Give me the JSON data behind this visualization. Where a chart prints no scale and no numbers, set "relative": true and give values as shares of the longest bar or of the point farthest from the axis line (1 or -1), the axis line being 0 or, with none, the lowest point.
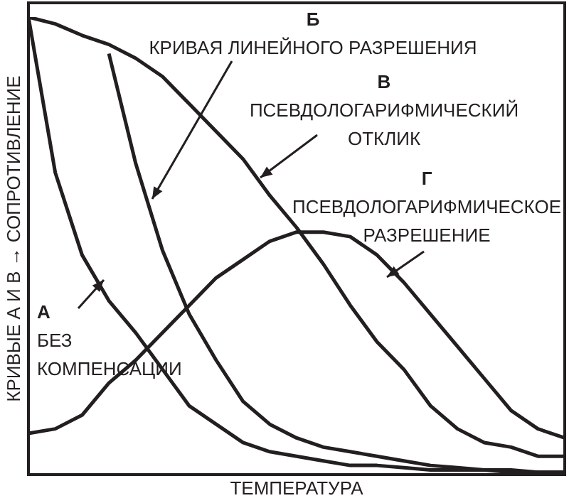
{
  "chart_data": {
    "type": "line",
    "relative": true,
    "xlabel": "ТЕМПЕРАТУРА",
    "ylabel": "КРИВЫЕ А И В → СОПРОТИВЛЕНИЕ",
    "grid": false,
    "legend": false,
    "marker": "none",
    "line_style": "solid",
    "categories": [
      null,
      null,
      null,
      null,
      null,
      null,
      null,
      null,
      null,
      null,
      null,
      null,
      null,
      null,
      null,
      null,
      null,
      null,
      null,
      null,
      null
    ],
    "series": [
      {
        "color": "#231f20",
        "values": [
          1,
          0.66,
          0.48,
          0.38,
          0.31,
          0.23,
          0.15,
          0.11,
          0.07,
          0.05,
          0.04,
          0.03,
          0.02,
          0.02,
          0.015,
          0.01,
          0.01,
          0.01,
          0.005,
          0.005,
          0.005
        ]
      },
      {
        "color": "#231f20",
        "values": [
          null,
          null,
          null,
          0.92,
          0.68,
          0.49,
          0.35,
          0.25,
          0.16,
          0.11,
          0.08,
          0.06,
          0.05,
          0.04,
          0.03,
          0.02,
          0.015,
          0.01,
          0.01,
          0.005,
          0.005
        ]
      },
      {
        "color": "#231f20",
        "values": [
          1,
          0.985,
          0.96,
          0.94,
          0.91,
          0.87,
          0.81,
          0.75,
          0.69,
          0.61,
          0.54,
          0.46,
          0.37,
          0.29,
          0.23,
          0.15,
          0.1,
          0.07,
          0.06,
          0.04,
          0.04
        ]
      },
      {
        "color": "#231f20",
        "values": [
          0.09,
          0.1,
          0.13,
          0.2,
          0.25,
          0.31,
          0.37,
          0.43,
          0.47,
          0.51,
          0.53,
          0.53,
          0.52,
          0.48,
          0.42,
          0.35,
          0.28,
          0.21,
          0.14,
          0.1,
          0.08
        ]
      }
    ],
    "annotations": [
      "А",
      "БЕЗ КОМПЕНСАЦИИ",
      "Б",
      "КРИВАЯ ЛИНЕЙНОГО РАЗРЕШЕНИЯ",
      "В",
      "ПСЕВДОЛОГАРИФМИЧЕСКИЙ ОТКЛИК",
      "Г",
      "ПСЕВДОЛОГАРИФМИЧЕСКОЕ РАЗРЕШЕНИЕ"
    ]
  }
}
